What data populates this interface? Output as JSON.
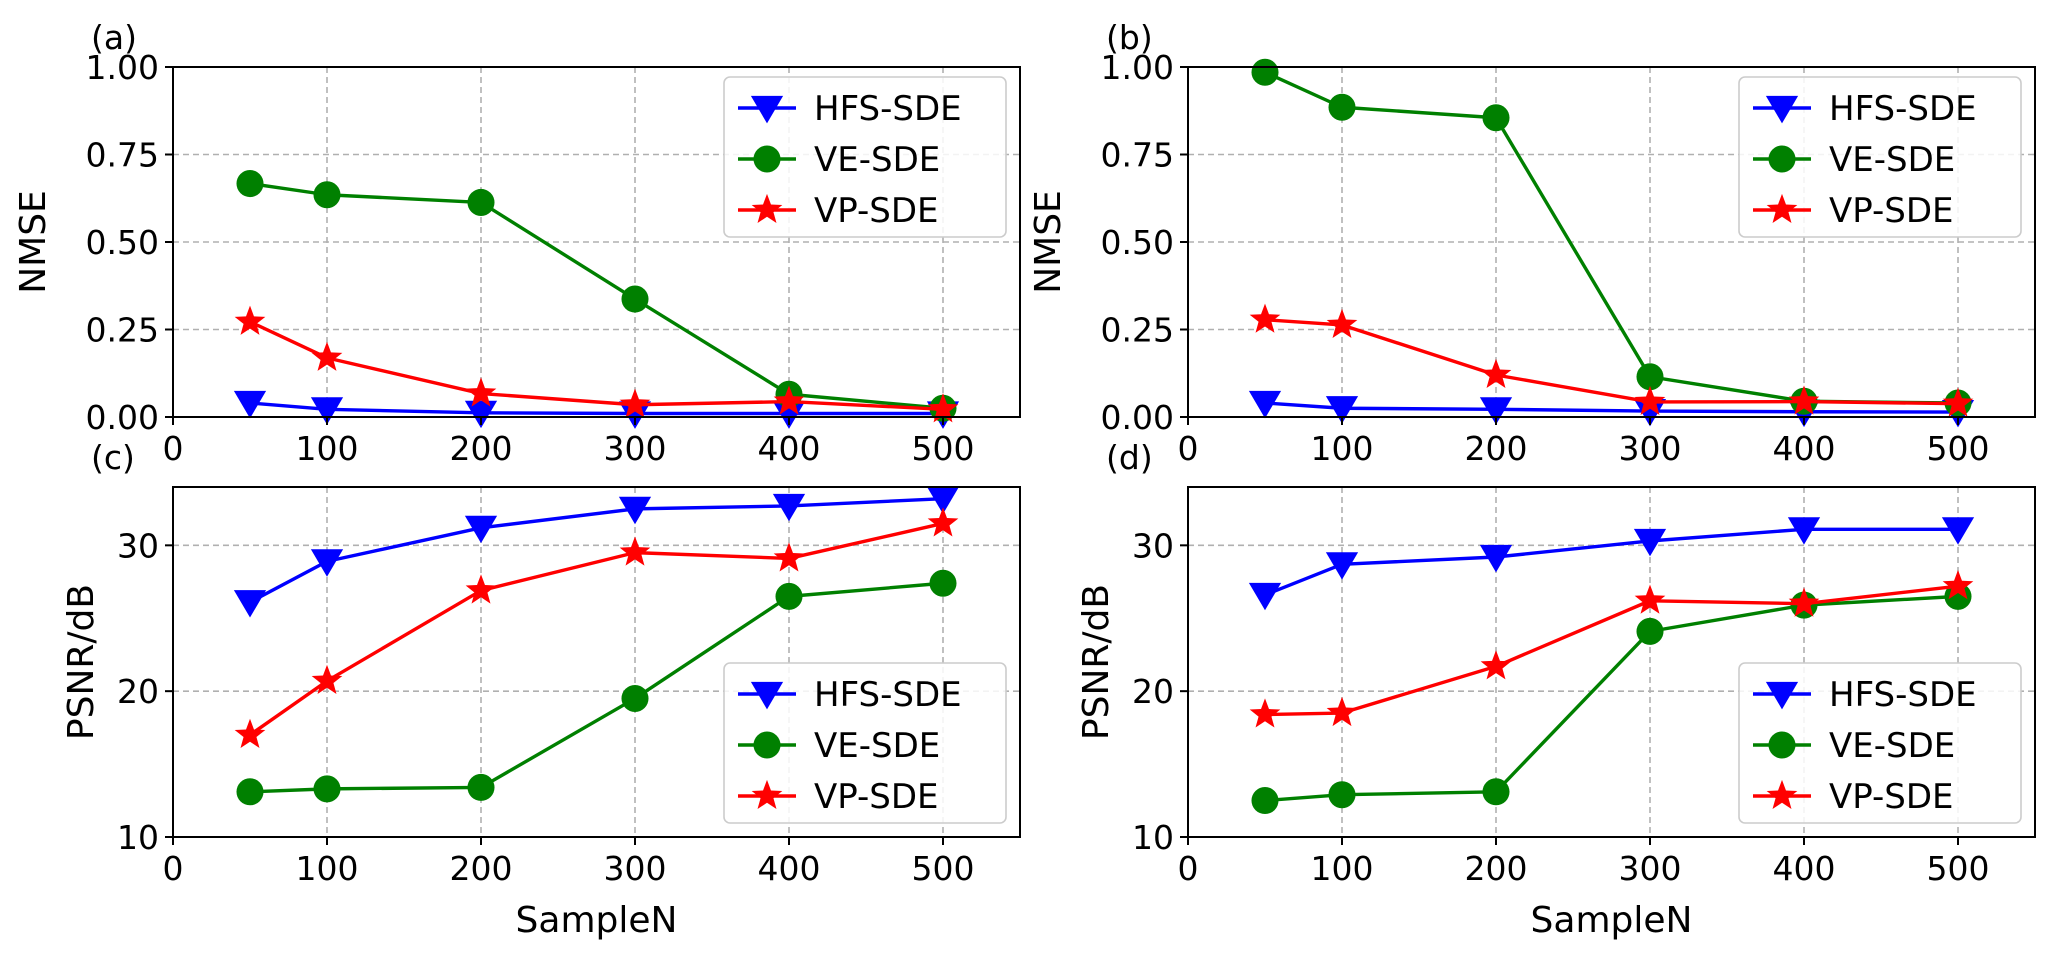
{
  "colors": {
    "HFS-SDE": "#0000ff",
    "VE-SDE": "#008000",
    "VP-SDE": "#ff0000"
  },
  "chart_data": [
    {
      "type": "line",
      "panel_label": "(a)",
      "xlabel": "",
      "ylabel": "NMSE",
      "xlim": [
        0,
        550
      ],
      "ylim": [
        0,
        1
      ],
      "xticks": [
        0,
        100,
        200,
        300,
        400,
        500
      ],
      "yticks": [
        0,
        0.25,
        0.5,
        0.75,
        1.0
      ],
      "xtick_labels": [
        "0",
        "100",
        "200",
        "300",
        "400",
        "500"
      ],
      "ytick_labels": [
        "0.00",
        "0.25",
        "0.50",
        "0.75",
        "1.00"
      ],
      "grid": true,
      "legend_position": "top-right",
      "x": [
        50,
        100,
        200,
        300,
        400,
        500
      ],
      "series": [
        {
          "name": "HFS-SDE",
          "marker": "triangle-down",
          "values": [
            0.04,
            0.022,
            0.012,
            0.01,
            0.01,
            0.01
          ]
        },
        {
          "name": "VE-SDE",
          "marker": "circle",
          "values": [
            0.667,
            0.635,
            0.613,
            0.337,
            0.065,
            0.025
          ]
        },
        {
          "name": "VP-SDE",
          "marker": "star",
          "values": [
            0.272,
            0.169,
            0.067,
            0.035,
            0.044,
            0.022
          ]
        }
      ]
    },
    {
      "type": "line",
      "panel_label": "(b)",
      "xlabel": "",
      "ylabel": "NMSE",
      "xlim": [
        0,
        550
      ],
      "ylim": [
        0,
        1
      ],
      "xticks": [
        0,
        100,
        200,
        300,
        400,
        500
      ],
      "yticks": [
        0,
        0.25,
        0.5,
        0.75,
        1.0
      ],
      "xtick_labels": [
        "0",
        "100",
        "200",
        "300",
        "400",
        "500"
      ],
      "ytick_labels": [
        "0.00",
        "0.25",
        "0.50",
        "0.75",
        "1.00"
      ],
      "grid": true,
      "legend_position": "top-right",
      "x": [
        50,
        100,
        200,
        300,
        400,
        500
      ],
      "series": [
        {
          "name": "HFS-SDE",
          "marker": "triangle-down",
          "values": [
            0.04,
            0.025,
            0.022,
            0.017,
            0.015,
            0.014
          ]
        },
        {
          "name": "VE-SDE",
          "marker": "circle",
          "values": [
            0.985,
            0.885,
            0.855,
            0.115,
            0.045,
            0.04
          ]
        },
        {
          "name": "VP-SDE",
          "marker": "star",
          "values": [
            0.278,
            0.263,
            0.12,
            0.043,
            0.044,
            0.038
          ]
        }
      ]
    },
    {
      "type": "line",
      "panel_label": "(c)",
      "xlabel": "SampleN",
      "ylabel": "PSNR/dB",
      "xlim": [
        0,
        550
      ],
      "ylim": [
        10,
        34
      ],
      "xticks": [
        0,
        100,
        200,
        300,
        400,
        500
      ],
      "yticks": [
        10,
        20,
        30
      ],
      "xtick_labels": [
        "0",
        "100",
        "200",
        "300",
        "400",
        "500"
      ],
      "ytick_labels": [
        "10",
        "20",
        "30"
      ],
      "grid": true,
      "legend_position": "bottom-right",
      "x": [
        50,
        100,
        200,
        300,
        400,
        500
      ],
      "series": [
        {
          "name": "HFS-SDE",
          "marker": "triangle-down",
          "values": [
            26.1,
            28.9,
            31.2,
            32.5,
            32.7,
            33.2
          ]
        },
        {
          "name": "VE-SDE",
          "marker": "circle",
          "values": [
            13.1,
            13.3,
            13.4,
            19.5,
            26.5,
            27.4
          ]
        },
        {
          "name": "VP-SDE",
          "marker": "star",
          "values": [
            17.0,
            20.7,
            26.9,
            29.5,
            29.1,
            31.5
          ]
        }
      ]
    },
    {
      "type": "line",
      "panel_label": "(d)",
      "xlabel": "SampleN",
      "ylabel": "PSNR/dB",
      "xlim": [
        0,
        550
      ],
      "ylim": [
        10,
        34
      ],
      "xticks": [
        0,
        100,
        200,
        300,
        400,
        500
      ],
      "yticks": [
        10,
        20,
        30
      ],
      "xtick_labels": [
        "0",
        "100",
        "200",
        "300",
        "400",
        "500"
      ],
      "ytick_labels": [
        "10",
        "20",
        "30"
      ],
      "grid": true,
      "legend_position": "bottom-right",
      "x": [
        50,
        100,
        200,
        300,
        400,
        500
      ],
      "series": [
        {
          "name": "HFS-SDE",
          "marker": "triangle-down",
          "values": [
            26.6,
            28.7,
            29.2,
            30.3,
            31.1,
            31.1
          ]
        },
        {
          "name": "VE-SDE",
          "marker": "circle",
          "values": [
            12.5,
            12.9,
            13.1,
            24.1,
            25.9,
            26.5
          ]
        },
        {
          "name": "VP-SDE",
          "marker": "star",
          "values": [
            18.4,
            18.5,
            21.7,
            26.2,
            26.0,
            27.2
          ]
        }
      ]
    }
  ]
}
